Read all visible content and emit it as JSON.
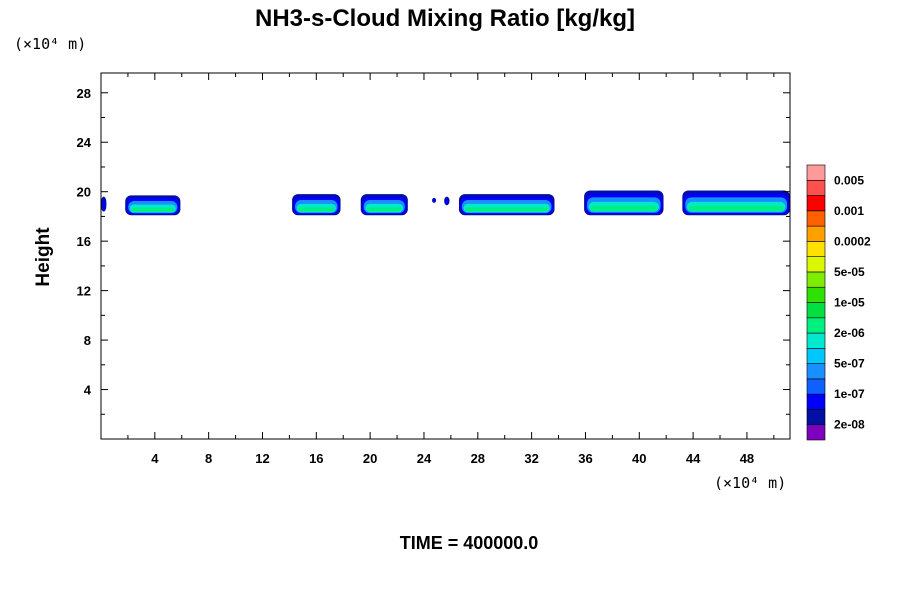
{
  "chart_data": {
    "type": "heatmap",
    "title": "NH3-s-Cloud Mixing Ratio [kg/kg]",
    "ylabel": "Height",
    "x_unit": "(×10⁴ m)",
    "y_unit": "(×10⁴ m)",
    "xlim": [
      0,
      51.2
    ],
    "ylim": [
      0,
      29.6
    ],
    "x_ticks": [
      4,
      8,
      12,
      16,
      20,
      24,
      28,
      32,
      36,
      40,
      44,
      48
    ],
    "y_ticks": [
      4,
      8,
      12,
      16,
      20,
      24,
      28
    ],
    "time_label": "TIME = 400000.0",
    "colorbar": {
      "colors": [
        "#7f00bf",
        "#0010a0",
        "#0000ff",
        "#1060ff",
        "#1890ff",
        "#00c8ff",
        "#00e8d0",
        "#00f080",
        "#00e040",
        "#30e000",
        "#80ec00",
        "#d8f800",
        "#ffe000",
        "#ffa000",
        "#ff6000",
        "#ff0000",
        "#ff5050",
        "#ff9a9a"
      ],
      "labels": [
        {
          "text": "2e-08",
          "index": 1
        },
        {
          "text": "1e-07",
          "index": 3
        },
        {
          "text": "5e-07",
          "index": 5
        },
        {
          "text": "2e-06",
          "index": 7
        },
        {
          "text": "1e-05",
          "index": 9
        },
        {
          "text": "5e-05",
          "index": 11
        },
        {
          "text": "0.0002",
          "index": 13
        },
        {
          "text": "0.001",
          "index": 15
        },
        {
          "text": "0.005",
          "index": 17
        }
      ]
    },
    "cloud_cells": [
      {
        "x0": 0.0,
        "x1": 0.4,
        "top": 19.6,
        "bottom": 18.4
      },
      {
        "x0": 1.8,
        "x1": 5.9,
        "top": 19.7,
        "bottom": 18.1
      },
      {
        "x0": 14.2,
        "x1": 17.8,
        "top": 19.8,
        "bottom": 18.1
      },
      {
        "x0": 19.3,
        "x1": 22.8,
        "top": 19.8,
        "bottom": 18.1
      },
      {
        "x0": 24.6,
        "x1": 24.9,
        "top": 19.5,
        "bottom": 19.1
      },
      {
        "x0": 25.5,
        "x1": 25.9,
        "top": 19.6,
        "bottom": 18.9
      },
      {
        "x0": 26.6,
        "x1": 33.7,
        "top": 19.8,
        "bottom": 18.1
      },
      {
        "x0": 35.9,
        "x1": 41.8,
        "top": 20.1,
        "bottom": 18.1
      },
      {
        "x0": 43.2,
        "x1": 51.2,
        "top": 20.1,
        "bottom": 18.1
      }
    ]
  }
}
